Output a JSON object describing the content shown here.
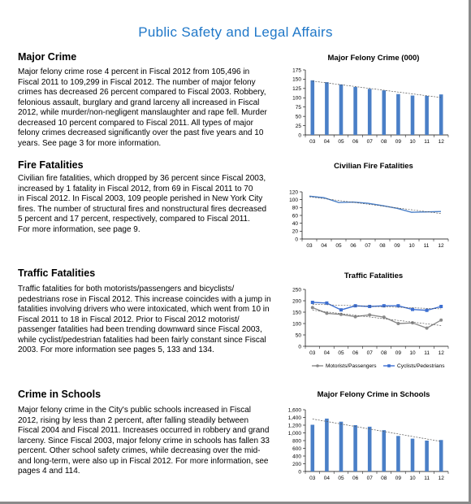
{
  "page": {
    "title": "Public Safety and Legal Affairs"
  },
  "sections": [
    {
      "heading": "Major Crime",
      "text": "Major felony crime rose 4 percent in Fiscal 2012 from 105,496 in\nFiscal 2011 to 109,299 in Fiscal 2012. The number of major felony\ncrimes has decreased 26 percent compared to Fiscal 2003. Robbery,\nfelonious assault, burglary and grand larceny all increased in Fiscal\n2012, while murder/non-negligent manslaughter and rape fell.  Murder\ndecreased 10 percent compared to Fiscal 2011. All types of major\nfelony crimes decreased significantly over the past five years and 10\nyears. See page 3 for more information."
    },
    {
      "heading": "Fire Fatalities",
      "text": "Civilian fire fatalities, which dropped by 36 percent since Fiscal 2003,\nincreased by 1 fatality in Fiscal 2012, from 69 in Fiscal 2011 to 70\nin Fiscal 2012. In Fiscal 2003, 109 people perished in New York City\nfires. The number of structural fires and nonstructural fires decreased\n5 percent and 17 percent, respectively, compared to Fiscal 2011.\nFor more information, see page 9."
    },
    {
      "heading": "Traffic Fatalities",
      "text": "Traffic fatalities for both motorists/passengers and bicyclists/\npedestrians rose in Fiscal 2012. This increase coincides with a jump in\nfatalities involving drivers who were intoxicated, which went from 10 in\nFiscal 2011 to 18 in Fiscal 2012. Prior to Fiscal 2012 motorist/\npassenger fatalities had been trending downward since Fiscal 2003,\nwhile cyclist/pedestrian fatalities had been fairly constant since Fiscal\n2003. For more information see pages 5, 133 and 134."
    },
    {
      "heading": "Crime in Schools",
      "text": "Major felony crime in the City's public schools increased in Fiscal\n2012, rising by less than 2 percent, after falling steadily between\nFiscal 2004 and Fiscal 2011. Increases occurred in robbery and grand\nlarceny. Since Fiscal 2003, major felony crime in schools has fallen 33\npercent. Other school safety crimes, while decreasing over the mid-\nand long-term, were also up in Fiscal 2012. For more information, see\npages 4 and 114."
    }
  ],
  "chart_data": [
    {
      "type": "bar",
      "title": "Major Felony Crime (000)",
      "categories": [
        "03",
        "04",
        "05",
        "06",
        "07",
        "08",
        "09",
        "10",
        "11",
        "12"
      ],
      "values": [
        147,
        142,
        136,
        129,
        124,
        120,
        110,
        106,
        105,
        109
      ],
      "ylim": [
        0,
        175
      ],
      "yticks": [
        "0",
        "25",
        "50",
        "75",
        "100",
        "125",
        "150",
        "175"
      ],
      "trendline": true,
      "color": "#4a7fc7"
    },
    {
      "type": "line",
      "title": "Civilian Fire Fatalities",
      "categories": [
        "03",
        "04",
        "05",
        "06",
        "07",
        "08",
        "09",
        "10",
        "11",
        "12"
      ],
      "series": [
        {
          "values": [
            109,
            105,
            93,
            94,
            91,
            85,
            78,
            68,
            69,
            70
          ]
        }
      ],
      "ylim": [
        0,
        120
      ],
      "yticks": [
        "0",
        "20",
        "40",
        "60",
        "80",
        "100",
        "120"
      ],
      "trendline": true,
      "color": "#4a7fc7"
    },
    {
      "type": "line",
      "title": "Traffic Fatalities",
      "categories": [
        "03",
        "04",
        "05",
        "06",
        "07",
        "08",
        "09",
        "10",
        "11",
        "12"
      ],
      "series": [
        {
          "name": "Motorists/Passengers",
          "values": [
            170,
            145,
            140,
            130,
            138,
            128,
            100,
            103,
            80,
            115
          ],
          "color": "#8a8a8a"
        },
        {
          "name": "Cyclists/Pedestrians",
          "values": [
            193,
            190,
            160,
            178,
            175,
            178,
            178,
            162,
            158,
            175
          ],
          "color": "#3d6fd1"
        }
      ],
      "ylim": [
        0,
        250
      ],
      "yticks": [
        "0",
        "50",
        "100",
        "150",
        "200",
        "250"
      ],
      "trendline": true,
      "legend": "bottom"
    },
    {
      "type": "bar",
      "title": "Major Felony Crime in Schools",
      "categories": [
        "03",
        "04",
        "05",
        "06",
        "07",
        "08",
        "09",
        "10",
        "11",
        "12"
      ],
      "values": [
        1210,
        1370,
        1290,
        1200,
        1160,
        1070,
        920,
        850,
        800,
        815
      ],
      "ylim": [
        0,
        1600
      ],
      "yticks": [
        "0",
        "200",
        "400",
        "600",
        "800",
        "1,000",
        "1,200",
        "1,400",
        "1,600"
      ],
      "trendline": true,
      "color": "#4a7fc7"
    }
  ]
}
